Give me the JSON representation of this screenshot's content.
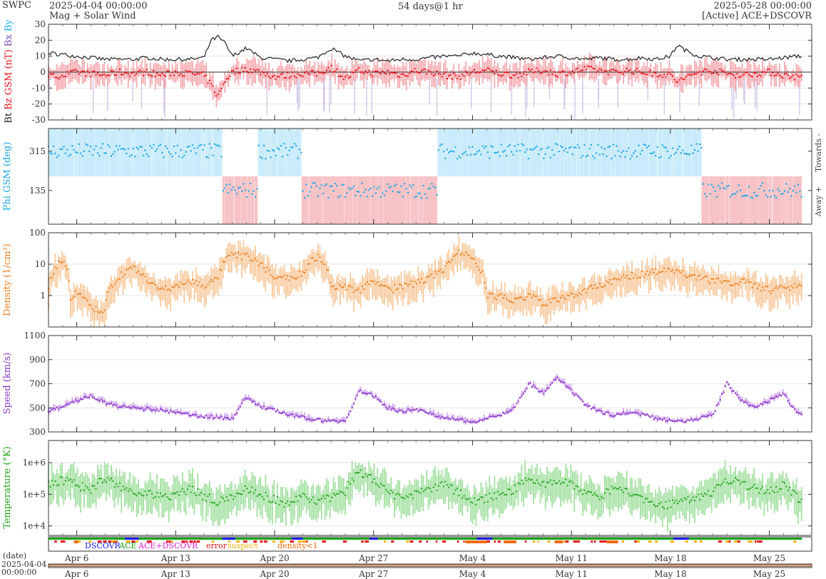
{
  "header": {
    "brand": "SWPC",
    "start_time": "2025-04-04 00:00:00",
    "subtitle": "Mag + Solar Wind",
    "span": "54 days@1 hr",
    "end_time": "2025-05-28 00:00:00",
    "source": "[Active] ACE+DSCOVR"
  },
  "colors": {
    "bt": "#222222",
    "bz": "#e8141b",
    "bz_band": "#f4a0a6",
    "bx": "#7b4fb8",
    "by": "#1eaee8",
    "bxby_band": "#c9bde4",
    "phi": "#1aa6e6",
    "towards_band": "#c9ebfb",
    "away_band": "#f7c3c6",
    "density": "#f07f1e",
    "density_band": "#f8c99c",
    "speed": "#8a34c8",
    "speed_band": "#d2a8ee",
    "temp": "#22a61a",
    "temp_band": "#a2e0a0",
    "dscovr": "#1a1aee",
    "ace": "#16a616",
    "ace_dscovr": "#e21ad0",
    "error": "#e3141b",
    "suspect": "#f2b10a",
    "density_lt1": "#f26a0a"
  },
  "chart_data": [
    {
      "type": "line",
      "panel": "magnetic",
      "ylabel_parts": [
        "Bt",
        "Bz GSM (nT)",
        "Bx",
        "By"
      ],
      "ylim": [
        -30,
        30
      ],
      "yticks": [
        "30",
        "20",
        "10",
        "0",
        "-10",
        "-20",
        "-30"
      ],
      "x_days": [
        0,
        1,
        2,
        3,
        4,
        5,
        6,
        7,
        8,
        9,
        10,
        11,
        11.5,
        12,
        12.5,
        13,
        14,
        15,
        16,
        17,
        18,
        19,
        20,
        21,
        22,
        23,
        24,
        25,
        26,
        27,
        28,
        29,
        30,
        31,
        32,
        33,
        34,
        35,
        36,
        37,
        38,
        39,
        40,
        41,
        42,
        43,
        44,
        44.5,
        45,
        46,
        47,
        48,
        49,
        50,
        51,
        52,
        53,
        54
      ],
      "series": [
        {
          "key": "bt",
          "values": [
            12,
            11,
            10,
            9,
            8,
            8,
            8,
            9,
            8,
            8,
            8,
            9,
            20,
            22,
            18,
            10,
            15,
            9,
            8,
            7,
            8,
            9,
            15,
            10,
            7,
            8,
            7,
            8,
            8,
            9,
            10,
            10,
            12,
            11,
            10,
            9,
            8,
            9,
            10,
            9,
            8,
            9,
            8,
            8,
            9,
            8,
            10,
            17,
            14,
            10,
            9,
            8,
            8,
            8,
            8,
            9,
            10,
            null
          ]
        },
        {
          "key": "bz",
          "values": [
            -3,
            -2,
            0,
            -1,
            -2,
            0,
            -1,
            0,
            -2,
            0,
            -1,
            -2,
            -8,
            -15,
            -5,
            0,
            2,
            0,
            -3,
            -2,
            -1,
            -1,
            3,
            -4,
            1,
            -1,
            0,
            -2,
            1,
            0,
            -2,
            -3,
            0,
            1,
            -1,
            -2,
            0,
            1,
            -1,
            0,
            2,
            1,
            0,
            1,
            0,
            -1,
            -2,
            -6,
            -4,
            0,
            1,
            -1,
            -2,
            -1,
            0,
            -2,
            -3,
            null
          ]
        }
      ]
    },
    {
      "type": "scatter",
      "panel": "phi",
      "ylabel": "Phi GSM (deg)",
      "yticks": [
        "315",
        "135"
      ],
      "right_labels": [
        "Towards -",
        "Away +"
      ],
      "sectors": [
        {
          "from": 0,
          "to": 12.3,
          "state": "towards"
        },
        {
          "from": 12.3,
          "to": 14.8,
          "state": "away"
        },
        {
          "from": 14.8,
          "to": 17.9,
          "state": "towards"
        },
        {
          "from": 17.9,
          "to": 27.5,
          "state": "away"
        },
        {
          "from": 27.5,
          "to": 46.2,
          "state": "towards"
        },
        {
          "from": 46.2,
          "to": 53.3,
          "state": "away"
        }
      ]
    },
    {
      "type": "line",
      "panel": "density",
      "ylabel": "Density (1/cm³)",
      "scale": "log",
      "yticks": [
        "100",
        "10",
        "1"
      ],
      "x_days": [
        0,
        0.5,
        1,
        1.5,
        2,
        3,
        4,
        5,
        6,
        7,
        8,
        9,
        10,
        11,
        12,
        12.5,
        13,
        14,
        15,
        16,
        17,
        18,
        19,
        20,
        21,
        22,
        23,
        24,
        25,
        26,
        27,
        28,
        29,
        30,
        31,
        32,
        33,
        34,
        35,
        36,
        37,
        38,
        39,
        40,
        41,
        42,
        43,
        44,
        45,
        46,
        47,
        48,
        49,
        50,
        51,
        52,
        53
      ],
      "values": [
        1.5,
        8,
        15,
        0.8,
        1.2,
        0.4,
        0.3,
        4,
        8,
        2.5,
        1.5,
        2,
        3,
        2,
        3.5,
        12,
        20,
        18,
        10,
        3,
        4,
        5,
        18,
        2,
        2,
        1.5,
        3,
        1.5,
        2,
        2.5,
        4,
        6,
        25,
        15,
        1,
        0.9,
        0.7,
        1,
        0.6,
        0.7,
        1,
        1.5,
        2,
        3,
        4,
        5,
        6,
        6,
        5,
        4,
        3,
        2.5,
        3,
        2,
        1.5,
        2,
        2
      ]
    },
    {
      "type": "line",
      "panel": "speed",
      "ylabel": "Speed (km/s)",
      "yticks": [
        "1100",
        "900",
        "700",
        "500",
        "300"
      ],
      "ylim": [
        300,
        1100
      ],
      "x_days": [
        0,
        1,
        2,
        3,
        4,
        5,
        6,
        7,
        8,
        9,
        10,
        11,
        12,
        13,
        14,
        15,
        16,
        17,
        18,
        19,
        20,
        21,
        22,
        23,
        24,
        25,
        26,
        27,
        28,
        29,
        30,
        31,
        32,
        33,
        34,
        35,
        36,
        37,
        38,
        39,
        40,
        41,
        42,
        43,
        44,
        45,
        46,
        47,
        48,
        49,
        50,
        51,
        52,
        53
      ],
      "values": [
        470,
        510,
        560,
        600,
        540,
        510,
        500,
        490,
        480,
        460,
        440,
        430,
        420,
        410,
        590,
        510,
        480,
        440,
        420,
        400,
        390,
        390,
        640,
        600,
        500,
        470,
        490,
        450,
        420,
        400,
        380,
        420,
        440,
        500,
        700,
        620,
        750,
        640,
        520,
        470,
        440,
        460,
        450,
        410,
        400,
        390,
        410,
        440,
        700,
        560,
        500,
        560,
        620,
        450
      ]
    },
    {
      "type": "line",
      "panel": "temperature",
      "ylabel": "Temperature (°K)",
      "scale": "log",
      "yticks": [
        "1e+6",
        "1e+5",
        "1e+4"
      ],
      "x_days": [
        0,
        1,
        2,
        3,
        4,
        5,
        6,
        7,
        8,
        9,
        10,
        11,
        12,
        13,
        14,
        15,
        16,
        17,
        18,
        19,
        20,
        21,
        22,
        23,
        24,
        25,
        26,
        27,
        28,
        29,
        30,
        31,
        32,
        33,
        34,
        35,
        36,
        37,
        38,
        39,
        40,
        41,
        42,
        43,
        44,
        45,
        46,
        47,
        48,
        49,
        50,
        51,
        52,
        53
      ],
      "values": [
        200000,
        300000,
        200000,
        150000,
        300000,
        200000,
        100000,
        120000,
        80000,
        100000,
        150000,
        90000,
        60000,
        80000,
        150000,
        100000,
        70000,
        50000,
        100000,
        60000,
        80000,
        120000,
        500000,
        300000,
        120000,
        80000,
        100000,
        150000,
        200000,
        120000,
        60000,
        80000,
        100000,
        150000,
        300000,
        200000,
        300000,
        200000,
        100000,
        80000,
        150000,
        120000,
        70000,
        40000,
        50000,
        60000,
        80000,
        120000,
        300000,
        250000,
        150000,
        120000,
        200000,
        80000
      ]
    }
  ],
  "legend": {
    "dscovr": "DSCOVR",
    "ace": "ACE",
    "ace_dscovr": "ACE+DSCOVR",
    "error": "error",
    "suspect": "suspect",
    "density_lt1": "density<1"
  },
  "x_axis": {
    "tick_labels": [
      "Apr 6",
      "Apr 13",
      "Apr 20",
      "Apr 27",
      "May 4",
      "May 11",
      "May 18",
      "May 25"
    ],
    "tick_days": [
      2,
      9,
      16,
      23,
      30,
      37,
      44,
      51
    ],
    "date_label": "(date)",
    "overview_start": "2025-04-04",
    "overview_time": "00:00:00"
  }
}
